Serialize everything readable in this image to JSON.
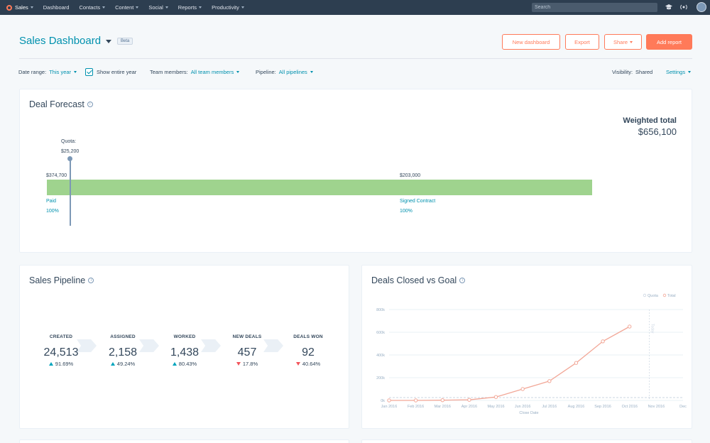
{
  "topnav": {
    "brand": "Sales",
    "items": [
      "Dashboard",
      "Contacts",
      "Content",
      "Social",
      "Reports",
      "Productivity"
    ],
    "search_placeholder": "Search",
    "icons": [
      "graduation-cap-icon",
      "broadcast-icon",
      "gear-icon",
      "avatar"
    ]
  },
  "header": {
    "title": "Sales Dashboard",
    "badge": "Beta",
    "buttons": {
      "new_dashboard": "New dashboard",
      "export": "Export",
      "share": "Share",
      "add_report": "Add report"
    }
  },
  "filters": {
    "date_range_label": "Date range:",
    "date_range_value": "This year",
    "show_entire_year": "Show entire year",
    "team_label": "Team members:",
    "team_value": "All team members",
    "pipeline_label": "Pipeline:",
    "pipeline_value": "All pipelines",
    "visibility_label": "Visibility:",
    "visibility_value": "Shared",
    "settings": "Settings"
  },
  "deal_forecast": {
    "title": "Deal Forecast",
    "weighted_label": "Weighted total",
    "weighted_value": "$656,100",
    "quota_label": "Quota:",
    "quota_value": "$25,200",
    "segments": [
      {
        "amount": "$374,700",
        "name": "Paid",
        "pct": "100%"
      },
      {
        "amount": "$203,000",
        "name": "Signed Contract",
        "pct": "100%"
      }
    ]
  },
  "sales_pipeline": {
    "title": "Sales Pipeline",
    "stages": [
      {
        "label": "CREATED",
        "value": "24,513",
        "change": "91.69%",
        "direction": "up"
      },
      {
        "label": "ASSIGNED",
        "value": "2,158",
        "change": "49.24%",
        "direction": "up"
      },
      {
        "label": "WORKED",
        "value": "1,438",
        "change": "80.43%",
        "direction": "up"
      },
      {
        "label": "NEW DEALS",
        "value": "457",
        "change": "17.8%",
        "direction": "down"
      },
      {
        "label": "DEALS WON",
        "value": "92",
        "change": "40.64%",
        "direction": "down"
      }
    ]
  },
  "deals_closed": {
    "title": "Deals Closed vs Goal"
  },
  "chart_data": {
    "type": "line",
    "title": "Deals Closed vs Goal",
    "xlabel": "Close Date",
    "ylabel": "",
    "x": [
      "Jan 2016",
      "Feb 2016",
      "Mar 2016",
      "Apr 2016",
      "May 2016",
      "Jun 2016",
      "Jul 2016",
      "Aug 2016",
      "Sep 2016",
      "Oct 2016",
      "Nov 2016",
      "Dec"
    ],
    "y_ticks": [
      "0k",
      "200k",
      "400k",
      "600k",
      "800k"
    ],
    "ylim": [
      0,
      800000
    ],
    "grid": true,
    "legend": "top-right",
    "series": [
      {
        "name": "Quota",
        "color": "#cbd6e2",
        "values": [
          25200,
          25200,
          25200,
          25200,
          25200,
          25200,
          25200,
          25200,
          25200,
          25200,
          25200,
          25200
        ]
      },
      {
        "name": "Total",
        "color": "#f2a797",
        "values": [
          0,
          0,
          2000,
          5000,
          30000,
          100000,
          170000,
          330000,
          520000,
          650000,
          null,
          null
        ]
      }
    ],
    "marker_label": "Today",
    "marker_x": "Nov 2016"
  },
  "colors": {
    "accent": "#0091ae",
    "cta": "#ff7a59",
    "forecast_bar": "#9fd38e",
    "nav": "#2d3e50"
  }
}
